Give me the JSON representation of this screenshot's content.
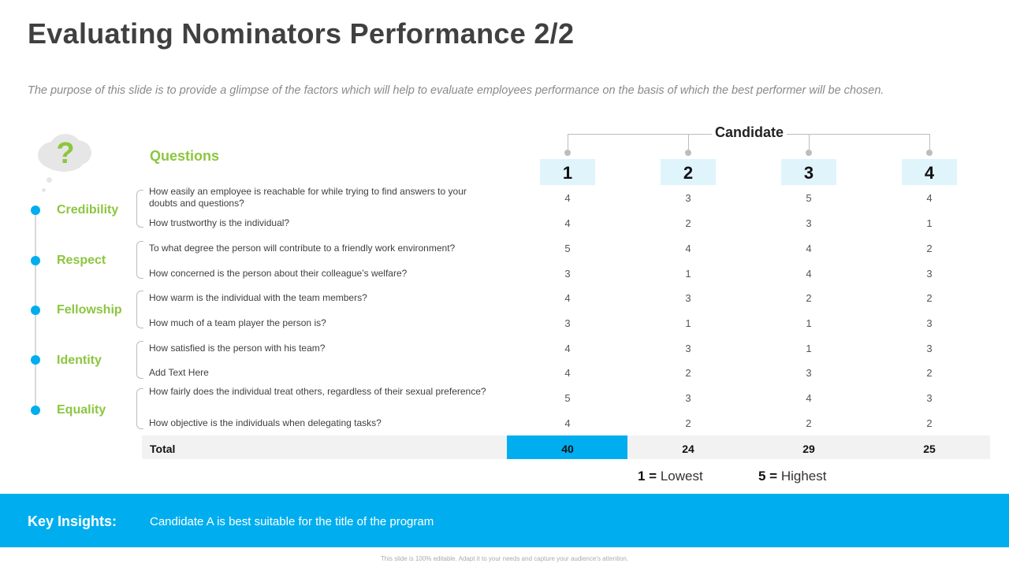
{
  "title": "Evaluating Nominators Performance 2/2",
  "subtitle": "The purpose of this slide is to provide a glimpse of the factors which will help to evaluate employees performance on the basis of which the best performer will be chosen.",
  "icon": "question-cloud-icon",
  "questions_heading": "Questions",
  "candidate_heading": "Candidate",
  "candidates": [
    "1",
    "2",
    "3",
    "4"
  ],
  "categories": [
    "Credibility",
    "Respect",
    "Fellowship",
    "Identity",
    "Equality"
  ],
  "questions": [
    "How easily an employee is reachable for while trying to find answers to your doubts and questions?",
    "How trustworthy is the individual?",
    "To what degree the person will contribute to a friendly work environment?",
    "How concerned is the person about their colleague’s welfare?",
    "How warm is the individual with the team members?",
    "How much of a team player the person is?",
    "How satisfied is the person with his team?",
    "Add Text Here",
    "How fairly does the individual treat others, regardless of their sexual preference?",
    "How objective is the individuals when delegating tasks?"
  ],
  "scores": [
    [
      "4",
      "3",
      "5",
      "4"
    ],
    [
      "4",
      "2",
      "3",
      "1"
    ],
    [
      "5",
      "4",
      "4",
      "2"
    ],
    [
      "3",
      "1",
      "4",
      "3"
    ],
    [
      "4",
      "3",
      "2",
      "2"
    ],
    [
      "3",
      "1",
      "1",
      "3"
    ],
    [
      "4",
      "3",
      "1",
      "3"
    ],
    [
      "4",
      "2",
      "3",
      "2"
    ],
    [
      "5",
      "3",
      "4",
      "3"
    ],
    [
      "4",
      "2",
      "2",
      "2"
    ]
  ],
  "total_label": "Total",
  "totals": [
    "40",
    "24",
    "29",
    "25"
  ],
  "legend": {
    "low_num": "1 =",
    "low_text": "Lowest",
    "high_num": "5 =",
    "high_text": "Highest"
  },
  "insights": {
    "label": "Key Insights:",
    "text": "Candidate A  is best suitable for the title of the program"
  },
  "footer": "This slide is 100% editable. Adapt it to your needs and capture your audience's attention.",
  "colors": {
    "accent_blue": "#00aeef",
    "accent_green": "#8cc63f",
    "box_blue": "#e0f4fc"
  }
}
